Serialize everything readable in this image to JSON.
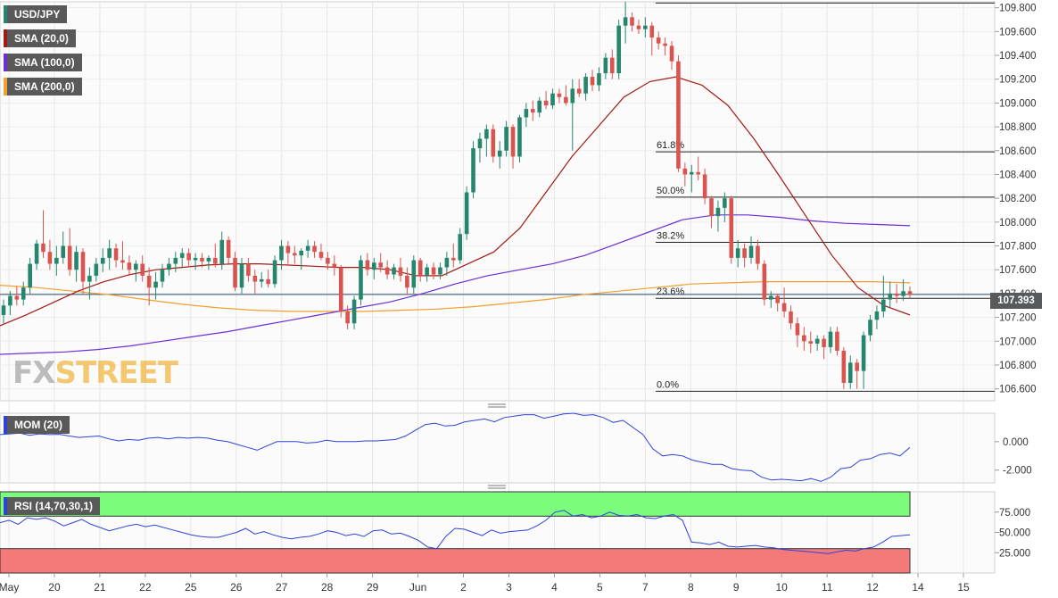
{
  "legend": {
    "pair": "USD/JPY",
    "sma20": "SMA (20,0)",
    "sma100": "SMA (100,0)",
    "sma200": "SMA (200,0)",
    "mom": "MOM (20)",
    "rsi": "RSI (14,70,30,1)"
  },
  "colors": {
    "up": "#26856d",
    "down": "#d9534f",
    "sma20": "#a31a12",
    "sma100": "#6a2fd6",
    "sma200": "#f0a02c",
    "mom_line": "#2d43d8",
    "rsi_line": "#2d43d8",
    "rsi_overbought": "#7cfc7c",
    "rsi_oversold": "#f47a7a"
  },
  "watermark": {
    "fx": "FX",
    "street": "STREET"
  },
  "current_price": "107.393",
  "chart_data": {
    "type": "candlestick",
    "symbol": "USD/JPY",
    "x_ticks": [
      "May",
      "20",
      "21",
      "22",
      "25",
      "26",
      "27",
      "28",
      "29",
      "Jun",
      "2",
      "3",
      "4",
      "5",
      "7",
      "8",
      "9",
      "10",
      "11",
      "12",
      "14",
      "15"
    ],
    "price_axis": {
      "ylim": [
        106.5,
        109.85
      ],
      "ticks": [
        "109.800",
        "109.600",
        "109.400",
        "109.200",
        "109.000",
        "108.800",
        "108.600",
        "108.400",
        "108.200",
        "108.000",
        "107.800",
        "107.600",
        "107.400",
        "107.200",
        "107.000",
        "106.800",
        "106.600"
      ]
    },
    "candles": [
      [
        107.22,
        107.35,
        107.15,
        107.3
      ],
      [
        107.3,
        107.42,
        107.22,
        107.38
      ],
      [
        107.38,
        107.46,
        107.3,
        107.35
      ],
      [
        107.35,
        107.5,
        107.3,
        107.45
      ],
      [
        107.45,
        107.7,
        107.4,
        107.65
      ],
      [
        107.65,
        107.85,
        107.6,
        107.82
      ],
      [
        107.82,
        108.1,
        107.7,
        107.75
      ],
      [
        107.75,
        107.85,
        107.6,
        107.65
      ],
      [
        107.65,
        107.8,
        107.55,
        107.7
      ],
      [
        107.7,
        107.92,
        107.65,
        107.8
      ],
      [
        107.8,
        107.95,
        107.55,
        107.6
      ],
      [
        107.6,
        107.8,
        107.5,
        107.75
      ],
      [
        107.75,
        107.78,
        107.4,
        107.5
      ],
      [
        107.5,
        107.62,
        107.35,
        107.55
      ],
      [
        107.55,
        107.7,
        107.5,
        107.65
      ],
      [
        107.65,
        107.78,
        107.58,
        107.7
      ],
      [
        107.7,
        107.85,
        107.6,
        107.78
      ],
      [
        107.78,
        107.82,
        107.62,
        107.68
      ],
      [
        107.68,
        107.84,
        107.6,
        107.66
      ],
      [
        107.66,
        107.72,
        107.55,
        107.6
      ],
      [
        107.6,
        107.68,
        107.5,
        107.65
      ],
      [
        107.65,
        107.72,
        107.5,
        107.55
      ],
      [
        107.55,
        107.62,
        107.3,
        107.45
      ],
      [
        107.45,
        107.58,
        107.35,
        107.5
      ],
      [
        107.5,
        107.65,
        107.45,
        107.6
      ],
      [
        107.6,
        107.7,
        107.55,
        107.65
      ],
      [
        107.65,
        107.75,
        107.58,
        107.7
      ],
      [
        107.7,
        107.78,
        107.62,
        107.74
      ],
      [
        107.74,
        107.78,
        107.62,
        107.68
      ],
      [
        107.68,
        107.74,
        107.6,
        107.7
      ],
      [
        107.7,
        107.74,
        107.62,
        107.67
      ],
      [
        107.67,
        107.72,
        107.6,
        107.7
      ],
      [
        107.7,
        107.82,
        107.62,
        107.65
      ],
      [
        107.65,
        107.92,
        107.6,
        107.85
      ],
      [
        107.85,
        107.88,
        107.65,
        107.7
      ],
      [
        107.7,
        107.75,
        107.42,
        107.45
      ],
      [
        107.45,
        107.7,
        107.4,
        107.65
      ],
      [
        107.65,
        107.7,
        107.5,
        107.55
      ],
      [
        107.55,
        107.6,
        107.4,
        107.5
      ],
      [
        107.5,
        107.58,
        107.45,
        107.52
      ],
      [
        107.52,
        107.6,
        107.45,
        107.48
      ],
      [
        107.48,
        107.72,
        107.45,
        107.68
      ],
      [
        107.68,
        107.85,
        107.6,
        107.8
      ],
      [
        107.8,
        107.84,
        107.65,
        107.74
      ],
      [
        107.74,
        107.8,
        107.65,
        107.72
      ],
      [
        107.72,
        107.78,
        107.6,
        107.76
      ],
      [
        107.76,
        107.85,
        107.7,
        107.8
      ],
      [
        107.8,
        107.84,
        107.7,
        107.75
      ],
      [
        107.75,
        107.82,
        107.68,
        107.7
      ],
      [
        107.7,
        107.75,
        107.6,
        107.65
      ],
      [
        107.65,
        107.72,
        107.55,
        107.62
      ],
      [
        107.62,
        107.64,
        107.2,
        107.25
      ],
      [
        107.25,
        107.3,
        107.1,
        107.15
      ],
      [
        107.15,
        107.38,
        107.1,
        107.35
      ],
      [
        107.35,
        107.72,
        107.3,
        107.68
      ],
      [
        107.68,
        107.74,
        107.55,
        107.6
      ],
      [
        107.6,
        107.7,
        107.52,
        107.66
      ],
      [
        107.66,
        107.74,
        107.58,
        107.62
      ],
      [
        107.62,
        107.68,
        107.52,
        107.56
      ],
      [
        107.56,
        107.65,
        107.52,
        107.62
      ],
      [
        107.62,
        107.7,
        107.5,
        107.55
      ],
      [
        107.55,
        107.62,
        107.4,
        107.45
      ],
      [
        107.45,
        107.72,
        107.4,
        107.68
      ],
      [
        107.68,
        107.7,
        107.5,
        107.55
      ],
      [
        107.55,
        107.65,
        107.5,
        107.62
      ],
      [
        107.62,
        107.66,
        107.52,
        107.56
      ],
      [
        107.56,
        107.66,
        107.52,
        107.62
      ],
      [
        107.62,
        107.75,
        107.55,
        107.7
      ],
      [
        107.7,
        107.82,
        107.62,
        107.68
      ],
      [
        107.68,
        107.95,
        107.65,
        107.9
      ],
      [
        107.9,
        108.3,
        107.85,
        108.25
      ],
      [
        108.25,
        108.68,
        108.2,
        108.62
      ],
      [
        108.62,
        108.75,
        108.5,
        108.7
      ],
      [
        108.7,
        108.82,
        108.55,
        108.78
      ],
      [
        108.78,
        108.82,
        108.5,
        108.55
      ],
      [
        108.55,
        108.68,
        108.45,
        108.6
      ],
      [
        108.6,
        108.85,
        108.55,
        108.8
      ],
      [
        108.8,
        108.82,
        108.45,
        108.55
      ],
      [
        108.55,
        108.9,
        108.5,
        108.88
      ],
      [
        108.88,
        109.0,
        108.8,
        108.95
      ],
      [
        108.95,
        109.02,
        108.85,
        108.92
      ],
      [
        108.92,
        109.05,
        108.88,
        109.02
      ],
      [
        109.02,
        109.1,
        108.95,
        108.98
      ],
      [
        108.98,
        109.12,
        108.95,
        109.08
      ],
      [
        109.08,
        109.12,
        109.0,
        109.05
      ],
      [
        109.05,
        109.15,
        108.98,
        109.0
      ],
      [
        109.0,
        109.2,
        108.6,
        109.12
      ],
      [
        109.12,
        109.2,
        109.05,
        109.08
      ],
      [
        109.08,
        109.25,
        109.02,
        109.22
      ],
      [
        109.22,
        109.28,
        109.1,
        109.15
      ],
      [
        109.15,
        109.3,
        109.1,
        109.25
      ],
      [
        109.25,
        109.42,
        109.2,
        109.38
      ],
      [
        109.38,
        109.45,
        109.2,
        109.25
      ],
      [
        109.25,
        109.7,
        109.2,
        109.65
      ],
      [
        109.65,
        109.85,
        109.5,
        109.72
      ],
      [
        109.72,
        109.76,
        109.6,
        109.65
      ],
      [
        109.65,
        109.7,
        109.58,
        109.62
      ],
      [
        109.62,
        109.72,
        109.55,
        109.65
      ],
      [
        109.65,
        109.68,
        109.4,
        109.55
      ],
      [
        109.55,
        109.6,
        109.45,
        109.5
      ],
      [
        109.5,
        109.55,
        109.4,
        109.48
      ],
      [
        109.48,
        109.52,
        109.28,
        109.35
      ],
      [
        109.35,
        109.4,
        108.42,
        108.45
      ],
      [
        108.45,
        108.5,
        108.3,
        108.4
      ],
      [
        108.4,
        108.48,
        108.25,
        108.42
      ],
      [
        108.42,
        108.55,
        108.35,
        108.4
      ],
      [
        108.4,
        108.45,
        108.15,
        108.2
      ],
      [
        108.2,
        108.22,
        107.95,
        108.05
      ],
      [
        108.05,
        108.18,
        107.92,
        108.12
      ],
      [
        108.12,
        108.25,
        108.0,
        108.2
      ],
      [
        108.2,
        108.22,
        107.65,
        107.7
      ],
      [
        107.7,
        107.85,
        107.62,
        107.78
      ],
      [
        107.78,
        107.82,
        107.62,
        107.7
      ],
      [
        107.7,
        107.88,
        107.65,
        107.8
      ],
      [
        107.8,
        107.85,
        107.6,
        107.65
      ],
      [
        107.65,
        107.68,
        107.3,
        107.35
      ],
      [
        107.35,
        107.42,
        107.28,
        107.38
      ],
      [
        107.38,
        107.4,
        107.25,
        107.32
      ],
      [
        107.32,
        107.45,
        107.2,
        107.25
      ],
      [
        107.25,
        107.3,
        107.1,
        107.15
      ],
      [
        107.15,
        107.2,
        106.95,
        107.05
      ],
      [
        107.05,
        107.12,
        106.92,
        107.0
      ],
      [
        107.0,
        107.08,
        106.9,
        106.98
      ],
      [
        106.98,
        107.05,
        106.92,
        107.02
      ],
      [
        107.02,
        107.05,
        106.85,
        106.95
      ],
      [
        106.95,
        107.12,
        106.9,
        107.08
      ],
      [
        107.08,
        107.12,
        106.88,
        106.92
      ],
      [
        106.92,
        106.95,
        106.6,
        106.65
      ],
      [
        106.65,
        106.88,
        106.6,
        106.82
      ],
      [
        106.82,
        106.85,
        106.6,
        106.75
      ],
      [
        106.75,
        107.08,
        106.6,
        107.05
      ],
      [
        107.05,
        107.22,
        107.0,
        107.18
      ],
      [
        107.18,
        107.3,
        107.1,
        107.25
      ],
      [
        107.25,
        107.55,
        107.2,
        107.35
      ],
      [
        107.35,
        107.5,
        107.28,
        107.4
      ],
      [
        107.4,
        107.48,
        107.32,
        107.38
      ],
      [
        107.38,
        107.52,
        107.34,
        107.42
      ],
      [
        107.42,
        107.46,
        107.36,
        107.39
      ]
    ],
    "sma20": [
      107.13,
      107.22,
      107.32,
      107.42,
      107.5,
      107.56,
      107.6,
      107.62,
      107.64,
      107.65,
      107.65,
      107.64,
      107.63,
      107.62,
      107.62,
      107.6,
      107.55,
      107.55,
      107.65,
      107.75,
      107.95,
      108.25,
      108.55,
      108.8,
      109.05,
      109.18,
      109.22,
      109.15,
      108.98,
      108.7,
      108.38,
      108.05,
      107.72,
      107.45,
      107.3,
      107.22
    ],
    "sma100": [
      106.89,
      106.9,
      106.91,
      106.93,
      106.96,
      107.0,
      107.04,
      107.08,
      107.13,
      107.18,
      107.23,
      107.28,
      107.33,
      107.4,
      107.48,
      107.55,
      107.6,
      107.65,
      107.72,
      107.82,
      107.92,
      108.02,
      108.06,
      108.06,
      108.04,
      108.01,
      107.99,
      107.98,
      107.97
    ],
    "sma200": [
      107.47,
      107.45,
      107.42,
      107.39,
      107.35,
      107.31,
      107.28,
      107.26,
      107.25,
      107.25,
      107.25,
      107.26,
      107.27,
      107.29,
      107.32,
      107.35,
      107.39,
      107.42,
      107.45,
      107.48,
      107.49,
      107.5,
      107.5,
      107.5,
      107.5,
      107.49
    ],
    "horizontal_levels": [
      {
        "label": "0.0%",
        "value": 106.58
      },
      {
        "label": "23.6%",
        "value": 107.36
      },
      {
        "label": "38.2%",
        "value": 107.83
      },
      {
        "label": "50.0%",
        "value": 108.21
      },
      {
        "label": "61.8%",
        "value": 108.59
      },
      {
        "label": "",
        "value": 109.84
      }
    ],
    "current_line": 107.393,
    "mom": {
      "ylim": [
        -2.9,
        2.0
      ],
      "ticks": [
        "0.000",
        "-2.000"
      ],
      "values": [
        0.5,
        0.55,
        0.6,
        0.45,
        0.55,
        0.5,
        0.52,
        0.4,
        0.3,
        0.35,
        0.4,
        0.2,
        0.05,
        0.15,
        0.1,
        0.25,
        0.3,
        0.2,
        0.3,
        0.25,
        0.3,
        0.25,
        0.1,
        0.0,
        -0.2,
        -0.4,
        -0.6,
        -0.3,
        0.0,
        0.0,
        0.0,
        -0.1,
        -0.05,
        0.1,
        0.0,
        0.0,
        0.0,
        0.05,
        0.05,
        0.1,
        0.15,
        0.4,
        0.8,
        1.2,
        1.3,
        1.1,
        1.15,
        1.4,
        1.5,
        1.6,
        1.4,
        1.7,
        1.8,
        1.9,
        1.9,
        1.65,
        1.8,
        1.95,
        2.0,
        1.85,
        1.9,
        1.7,
        1.35,
        1.5,
        1.0,
        0.5,
        -0.5,
        -1.0,
        -0.9,
        -1.0,
        -1.3,
        -1.45,
        -1.6,
        -1.6,
        -1.9,
        -2.0,
        -2.05,
        -2.5,
        -2.7,
        -2.65,
        -2.7,
        -2.75,
        -2.6,
        -2.8,
        -2.5,
        -1.9,
        -1.8,
        -1.3,
        -1.2,
        -0.9,
        -0.8,
        -1.0,
        -0.4
      ]
    },
    "rsi": {
      "ylim": [
        0,
        100
      ],
      "ticks": [
        "75.000",
        "50.000",
        "25.000"
      ],
      "overbought": 70,
      "oversold": 30,
      "values": [
        62,
        65,
        60,
        68,
        66,
        68,
        64,
        58,
        62,
        66,
        60,
        56,
        52,
        55,
        58,
        60,
        57,
        59,
        56,
        53,
        50,
        47,
        45,
        44,
        44,
        47,
        50,
        55,
        48,
        51,
        47,
        44,
        42,
        44,
        45,
        48,
        52,
        50,
        46,
        48,
        45,
        52,
        53,
        48,
        49,
        45,
        40,
        32,
        30,
        45,
        55,
        54,
        50,
        46,
        53,
        49,
        51,
        52,
        53,
        58,
        65,
        75,
        77,
        70,
        72,
        68,
        70,
        75,
        71,
        70,
        72,
        68,
        67,
        70,
        72,
        65,
        38,
        37,
        35,
        38,
        33,
        32,
        33,
        34,
        32,
        31,
        29,
        28,
        27,
        26,
        25,
        24,
        26,
        28,
        27,
        30,
        32,
        38,
        45,
        46,
        47
      ]
    }
  }
}
